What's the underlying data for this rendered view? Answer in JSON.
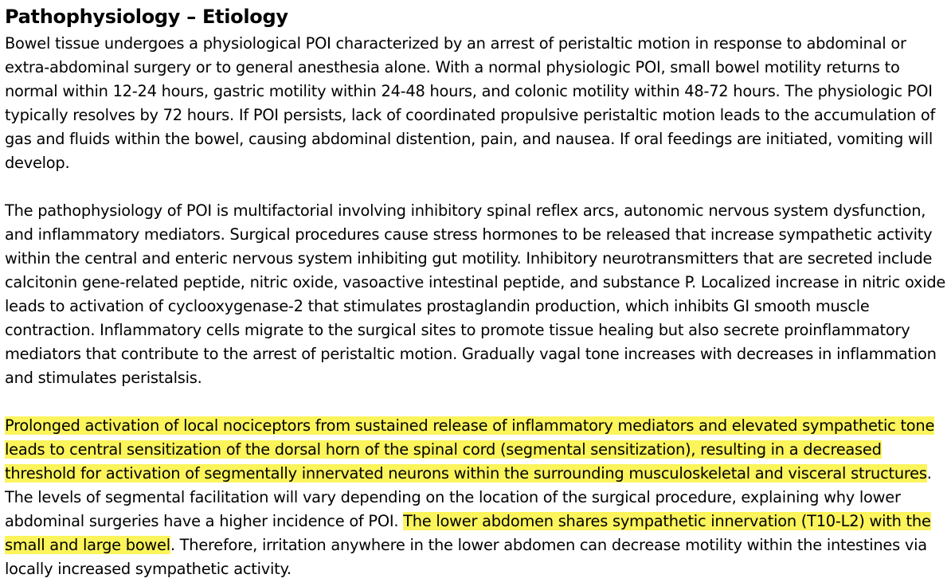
{
  "document": {
    "title": "Pathophysiology – Etiology",
    "paragraph1": "Bowel tissue undergoes a physiological POI characterized by an arrest of peristaltic motion in response to abdominal or extra-abdominal surgery or to general anesthesia alone. With a normal physiologic POI, small bowel motility returns to normal within 12-24 hours, gastric motility within 24-48 hours, and colonic motility within 48-72 hours. The physiologic POI typically resolves by 72 hours. If POI persists, lack of coordinated propulsive peristaltic motion leads to the accumulation of gas and fluids within the bowel, causing abdominal distention, pain, and nausea. If oral feedings are initiated, vomiting will develop.",
    "paragraph2": "The pathophysiology of POI is multifactorial involving inhibitory spinal reflex arcs, autonomic nervous system dysfunction, and inflammatory mediators. Surgical procedures cause stress hormones to be released that increase sympathetic activity within the central and enteric nervous system inhibiting gut motility. Inhibitory neurotransmitters that are secreted include calcitonin gene-related peptide, nitric oxide, vasoactive intestinal peptide, and substance P. Localized increase in nitric oxide leads to activation of cyclooxygenase-2 that stimulates prostaglandin production, which inhibits GI smooth muscle contraction. Inflammatory cells migrate to the surgical sites to promote tissue healing but also secrete proinflammatory mediators that contribute to the arrest of peristaltic motion. Gradually vagal tone increases with decreases in inflammation and stimulates peristalsis.",
    "paragraph3": {
      "highlight1": "Prolonged activation of local nociceptors from sustained release of inflammatory mediators and elevated sympathetic tone leads to central sensitization of the dorsal horn of the spinal cord (segmental sensitization), resulting in a decreased threshold for activation of segmentally innervated neurons within the surrounding musculoskeletal and visceral structures",
      "text1": ". The levels of segmental facilitation will vary depending on the location of the surgical procedure, explaining why lower abdominal surgeries have a higher incidence of POI. ",
      "highlight2": "The lower abdomen shares sympathetic innervation (T10-L2) with the small and large bowel",
      "text2": ". Therefore, irritation anywhere in the lower abdomen can decrease motility within the intestines via locally increased sympathetic activity."
    },
    "highlight_color": "#fbf45b"
  }
}
